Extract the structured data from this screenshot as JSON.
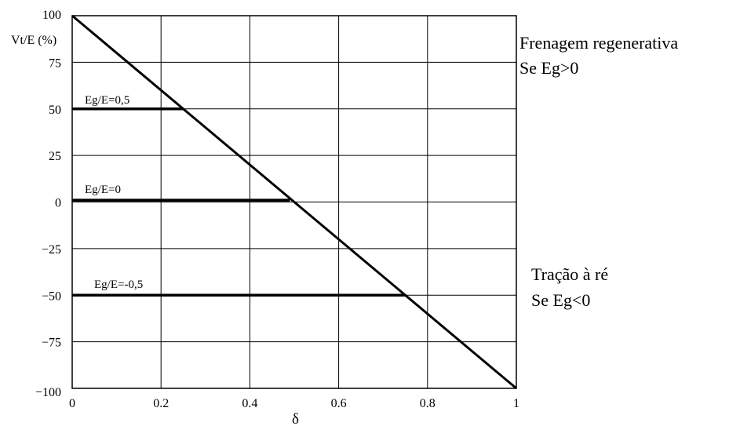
{
  "chart_data": {
    "type": "line",
    "title": "",
    "xlabel": "δ",
    "ylabel": "Vt/E (%)",
    "xlim": [
      0,
      1
    ],
    "ylim": [
      -100,
      100
    ],
    "x_ticks": [
      "0",
      "0.2",
      "0.4",
      "0.6",
      "0.8",
      "1"
    ],
    "x_tick_values": [
      0,
      0.2,
      0.4,
      0.6,
      0.8,
      1
    ],
    "y_ticks": [
      "100",
      "75",
      "50",
      "25",
      "0",
      "-25",
      "-50",
      "-75",
      "-100"
    ],
    "y_tick_values": [
      100,
      75,
      50,
      25,
      0,
      -25,
      -50,
      -75,
      -100
    ],
    "grid": true,
    "series": [
      {
        "x": [
          0,
          1
        ],
        "y": [
          100,
          -100
        ]
      },
      {
        "name": "Eg/E=0,5",
        "x": [
          0,
          0.25
        ],
        "y": [
          50,
          50
        ]
      },
      {
        "name": "Eg/E=0",
        "x": [
          0,
          0.49
        ],
        "y": [
          1,
          1
        ]
      },
      {
        "name": "Eg/E=-0,5",
        "x": [
          0,
          0.75
        ],
        "y": [
          -50,
          -50
        ]
      }
    ],
    "annotations": {
      "regen_line1": "Frenagem regenerativa",
      "regen_line2": "Se Eg>0",
      "reverse_line1": "Tração à ré",
      "reverse_line2": "Se Eg<0"
    }
  }
}
